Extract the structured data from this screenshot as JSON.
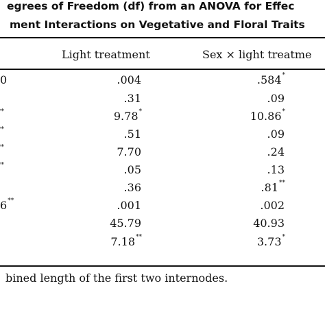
{
  "title": {
    "line1": "egrees of Freedom (df) from an ANOVA for Effec",
    "line2": "ment Interactions on Vegetative and Floral Traits"
  },
  "columns": [
    "Light treatment",
    "Sex × light treatme"
  ],
  "rows": [
    {
      "stub": "0",
      "stub_sig": "",
      "light": ".004",
      "light_sig": "",
      "sex": ".584",
      "sex_sig": "*"
    },
    {
      "stub": "",
      "stub_sig": "",
      "light": ".31",
      "light_sig": "",
      "sex": ".09",
      "sex_sig": ""
    },
    {
      "stub": "",
      "stub_sig": "**",
      "light": "9.78",
      "light_sig": "*",
      "sex": "10.86",
      "sex_sig": "*"
    },
    {
      "stub": "",
      "stub_sig": "**",
      "light": ".51",
      "light_sig": "",
      "sex": ".09",
      "sex_sig": ""
    },
    {
      "stub": "",
      "stub_sig": "**",
      "light": "7.70",
      "light_sig": "",
      "sex": ".24",
      "sex_sig": ""
    },
    {
      "stub": "",
      "stub_sig": "**",
      "light": ".05",
      "light_sig": "",
      "sex": ".13",
      "sex_sig": ""
    },
    {
      "stub": "",
      "stub_sig": "",
      "light": ".36",
      "light_sig": "",
      "sex": ".81",
      "sex_sig": "**"
    },
    {
      "stub": "6",
      "stub_sig": "**",
      "light": ".001",
      "light_sig": "",
      "sex": ".002",
      "sex_sig": ""
    },
    {
      "stub": "",
      "stub_sig": "",
      "light": "45.79",
      "light_sig": "",
      "sex": "40.93",
      "sex_sig": ""
    },
    {
      "stub": "",
      "stub_sig": "",
      "light": "7.18",
      "light_sig": "**",
      "sex": "3.73",
      "sex_sig": "*"
    }
  ],
  "footnote": "bined length of the first two internodes."
}
